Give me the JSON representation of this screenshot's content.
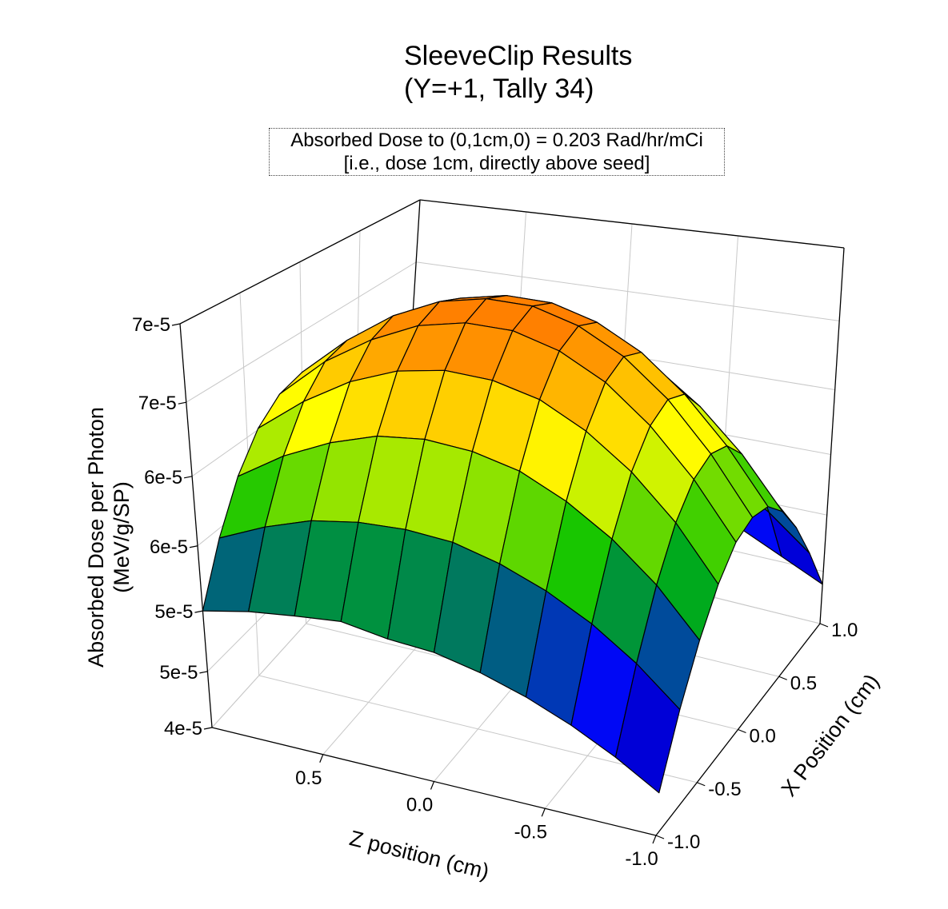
{
  "chart_data": {
    "type": "surface3d",
    "title": [
      "SleeveClip Results",
      "(Y=+1, Tally 34)"
    ],
    "annotation": [
      "Absorbed Dose to (0,1cm,0) = 0.203 Rad/hr/mCi",
      "[i.e., dose 1cm, directly above seed]"
    ],
    "ylabel": [
      "Absorbed Dose per Photon",
      "(MeV/g/SP)"
    ],
    "zlabel": "Z position (cm)",
    "xlabel": "X Position (cm)",
    "vertical_range": [
      4e-05,
      7e-05
    ],
    "vertical_ticks": [
      4e-05,
      4.5e-05,
      5e-05,
      5.5e-05,
      6e-05,
      6.5e-05,
      7e-05
    ],
    "vertical_tick_labels": [
      "4e-5",
      "5e-5",
      "5e-5",
      "6e-5",
      "6e-5",
      "7e-5",
      "7e-5"
    ],
    "z_range": [
      -1,
      1
    ],
    "z_ticks": [
      0.5,
      0.0,
      -0.5,
      -1.0
    ],
    "z_tick_labels": [
      "0.5",
      "0.0",
      "-0.5",
      "-1.0"
    ],
    "x_range": [
      -1,
      1
    ],
    "x_ticks": [
      -1.0,
      -0.5,
      0.0,
      0.5,
      1.0
    ],
    "x_tick_labels": [
      "-1.0",
      "-0.5",
      "0.0",
      "0.5",
      "1.0"
    ],
    "grid": true,
    "colormap": [
      "#000080",
      "#0000ff",
      "#00c000",
      "#ffff00",
      "#ff8000"
    ],
    "grid_z": [
      1.0,
      0.8,
      0.6,
      0.4,
      0.2,
      0.0,
      -0.2,
      -0.4,
      -0.6,
      -0.8,
      -1.0
    ],
    "grid_x": [
      -1.0,
      -0.8,
      -0.6,
      -0.4,
      -0.2,
      0.0,
      0.2,
      0.4,
      0.6,
      0.8,
      1.0
    ],
    "values": [
      [
        5e-05,
        5.43e-05,
        5.77e-05,
        6.01e-05,
        6.15e-05,
        6.2e-05,
        6.15e-05,
        6.01e-05,
        5.77e-05,
        5.43e-05,
        5e-05
      ],
      [
        5.07e-05,
        5.58e-05,
        5.98e-05,
        6.26e-05,
        6.44e-05,
        6.49e-05,
        6.44e-05,
        6.26e-05,
        5.98e-05,
        5.58e-05,
        5.07e-05
      ],
      [
        5.11e-05,
        5.69e-05,
        6.13e-05,
        6.45e-05,
        6.64e-05,
        6.71e-05,
        6.64e-05,
        6.45e-05,
        6.13e-05,
        5.69e-05,
        5.11e-05
      ],
      [
        5.14e-05,
        5.74e-05,
        6.23e-05,
        6.57e-05,
        6.78e-05,
        6.85e-05,
        6.78e-05,
        6.57e-05,
        6.23e-05,
        5.74e-05,
        5.12e-05
      ],
      [
        5.08e-05,
        5.75e-05,
        6.26e-05,
        6.62e-05,
        6.84e-05,
        6.91e-05,
        6.84e-05,
        6.62e-05,
        6.26e-05,
        5.75e-05,
        5.1e-05
      ],
      [
        5.05e-05,
        5.72e-05,
        6.23e-05,
        6.6e-05,
        6.83e-05,
        6.9e-05,
        6.83e-05,
        6.6e-05,
        6.23e-05,
        5.72e-05,
        5.05e-05
      ],
      [
        4.97e-05,
        5.63e-05,
        6.15e-05,
        6.52e-05,
        6.74e-05,
        6.81e-05,
        6.74e-05,
        6.52e-05,
        6.15e-05,
        5.63e-05,
        4.97e-05
      ],
      [
        4.86e-05,
        5.5e-05,
        6e-05,
        6.36e-05,
        6.58e-05,
        6.65e-05,
        6.58e-05,
        6.36e-05,
        6e-05,
        5.5e-05,
        4.86e-05
      ],
      [
        4.72e-05,
        5.33e-05,
        5.8e-05,
        6.14e-05,
        6.34e-05,
        6.41e-05,
        6.34e-05,
        6.14e-05,
        5.8e-05,
        5.33e-05,
        4.72e-05
      ],
      [
        4.55e-05,
        5.11e-05,
        5.54e-05,
        5.85e-05,
        6.03e-05,
        6.09e-05,
        6.03e-05,
        5.85e-05,
        5.54e-05,
        5.11e-05,
        4.55e-05
      ],
      [
        4.35e-05,
        4.84e-05,
        5.21e-05,
        5.48e-05,
        5.65e-05,
        5.7e-05,
        5.65e-05,
        5.48e-05,
        5.21e-05,
        4.84e-05,
        4.38e-05
      ]
    ]
  }
}
